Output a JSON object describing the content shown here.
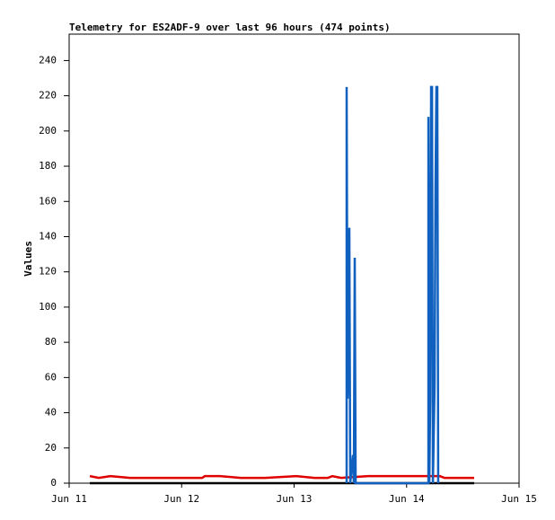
{
  "chart_data": {
    "type": "line",
    "title": "Telemetry for ES2ADF-9 over last 96 hours (474 points)",
    "ylabel": "Values",
    "xlim": [
      11,
      15
    ],
    "xticks": [
      {
        "value": 11,
        "label": "Jun 11"
      },
      {
        "value": 12,
        "label": "Jun 12"
      },
      {
        "value": 13,
        "label": "Jun 13"
      },
      {
        "value": 14,
        "label": "Jun 14"
      },
      {
        "value": 15,
        "label": "Jun 15"
      }
    ],
    "ylim": [
      0,
      255
    ],
    "yticks": [
      0,
      20,
      40,
      60,
      80,
      100,
      120,
      140,
      160,
      180,
      200,
      220,
      240
    ],
    "grid": false,
    "series": [
      {
        "color": "#000000",
        "x": [
          11.184,
          14.601
        ],
        "values": [
          0,
          0
        ]
      },
      {
        "color": "#e00000",
        "x": [
          11.184,
          11.263,
          11.367,
          11.543,
          12.182,
          12.206,
          12.341,
          12.525,
          12.741,
          13.02,
          13.18,
          13.299,
          13.339,
          13.419,
          13.659,
          14.297,
          14.337,
          14.601
        ],
        "values": [
          4,
          3,
          4,
          3,
          3,
          4,
          4,
          3,
          3,
          4,
          3,
          3,
          4,
          3,
          4,
          4,
          3,
          3
        ]
      },
      {
        "color": "#1060c0",
        "x": [
          13.467,
          13.467,
          13.475,
          13.483,
          13.491,
          13.499,
          13.523,
          13.531,
          13.539,
          13.547,
          14.194,
          14.194,
          14.202,
          14.21,
          14.218,
          14.226,
          14.234,
          14.249,
          14.257,
          14.265,
          14.273,
          14.281
        ],
        "values": [
          0,
          225,
          48,
          72,
          145,
          0,
          16,
          0,
          128,
          0,
          0,
          208,
          0,
          48,
          225,
          225,
          0,
          56,
          168,
          225,
          225,
          0
        ]
      }
    ]
  }
}
